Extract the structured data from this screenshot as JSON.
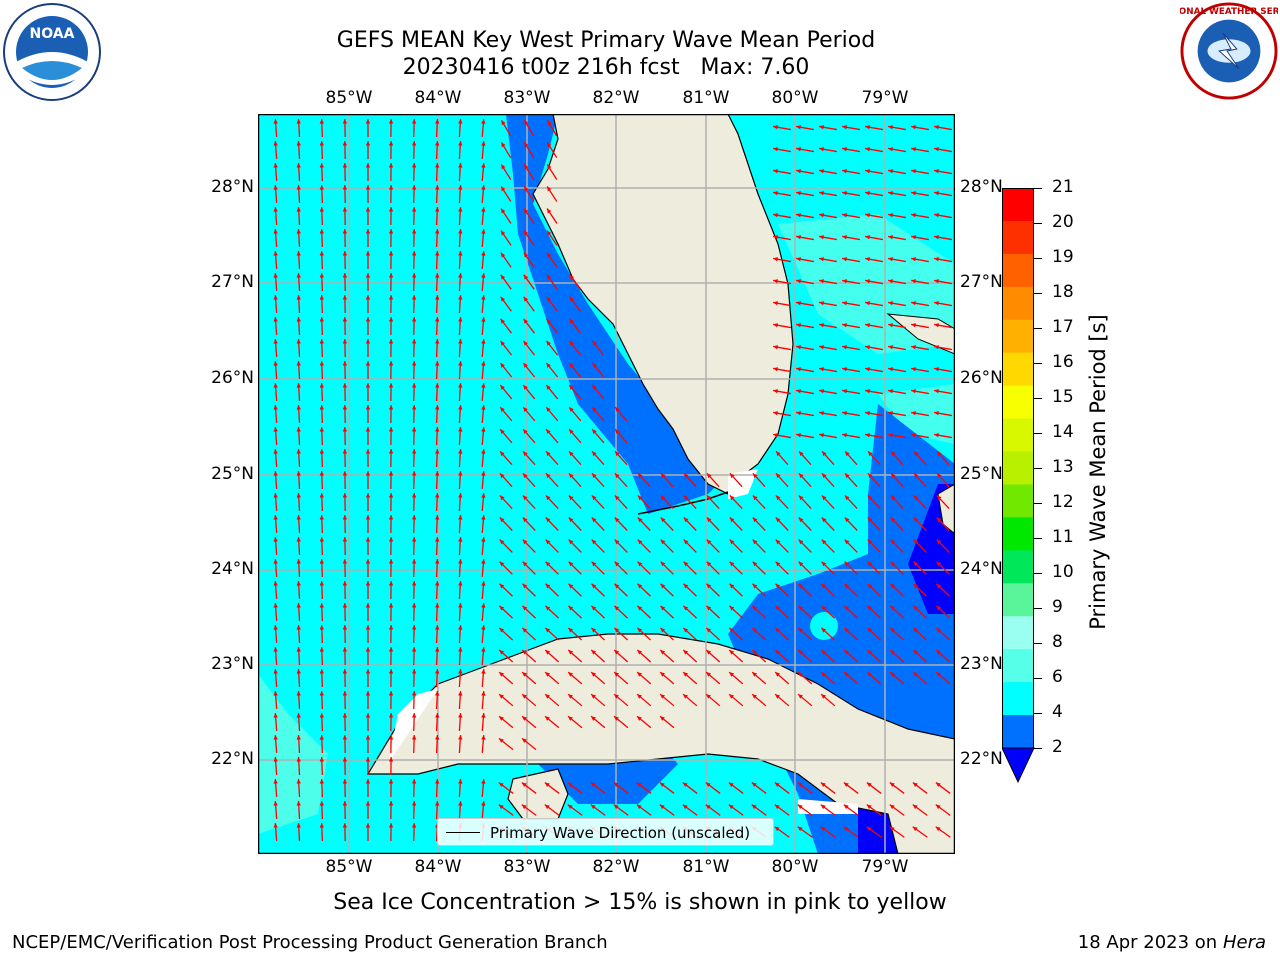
{
  "title": {
    "line1": "GEFS MEAN Key West Primary Wave Mean Period",
    "line2": "20230416 t00z 216h fcst   Max: 7.60"
  },
  "map": {
    "lon_labels": [
      "85°W",
      "84°W",
      "83°W",
      "82°W",
      "81°W",
      "80°W",
      "79°W"
    ],
    "lat_labels": [
      "28°N",
      "27°N",
      "26°N",
      "25°N",
      "24°N",
      "23°N",
      "22°N"
    ],
    "legend_label": "Primary Wave Direction (unscaled)",
    "arrow_color": "#ff0000",
    "land_color": "#eeecdc",
    "grid_color": "#b0b0b0"
  },
  "colorbar": {
    "label": "Primary Wave Mean Period [s]",
    "ticks": [
      "21",
      "20",
      "19",
      "18",
      "17",
      "16",
      "15",
      "14",
      "13",
      "12",
      "11",
      "10",
      "9",
      "8",
      "6",
      "4",
      "2"
    ],
    "colors": [
      "#ff0000",
      "#ff3000",
      "#ff6000",
      "#ff8c00",
      "#ffb000",
      "#ffd800",
      "#f8ff00",
      "#d8f800",
      "#b8f000",
      "#70e800",
      "#00e800",
      "#00e85a",
      "#5af59a",
      "#9afff0",
      "#55ffe8",
      "#00ffff",
      "#0070ff",
      "#0000ff"
    ]
  },
  "subtitle": "Sea Ice Concentration > 15% is shown in pink to yellow",
  "footer": {
    "left": "NCEP/EMC/Verification Post Processing Product Generation Branch",
    "right_date": "18 Apr 2023 on ",
    "right_host": "Hera"
  },
  "logos": {
    "left_text": "NOAA",
    "right_text": "NATIONAL WEATHER SERVICE"
  }
}
